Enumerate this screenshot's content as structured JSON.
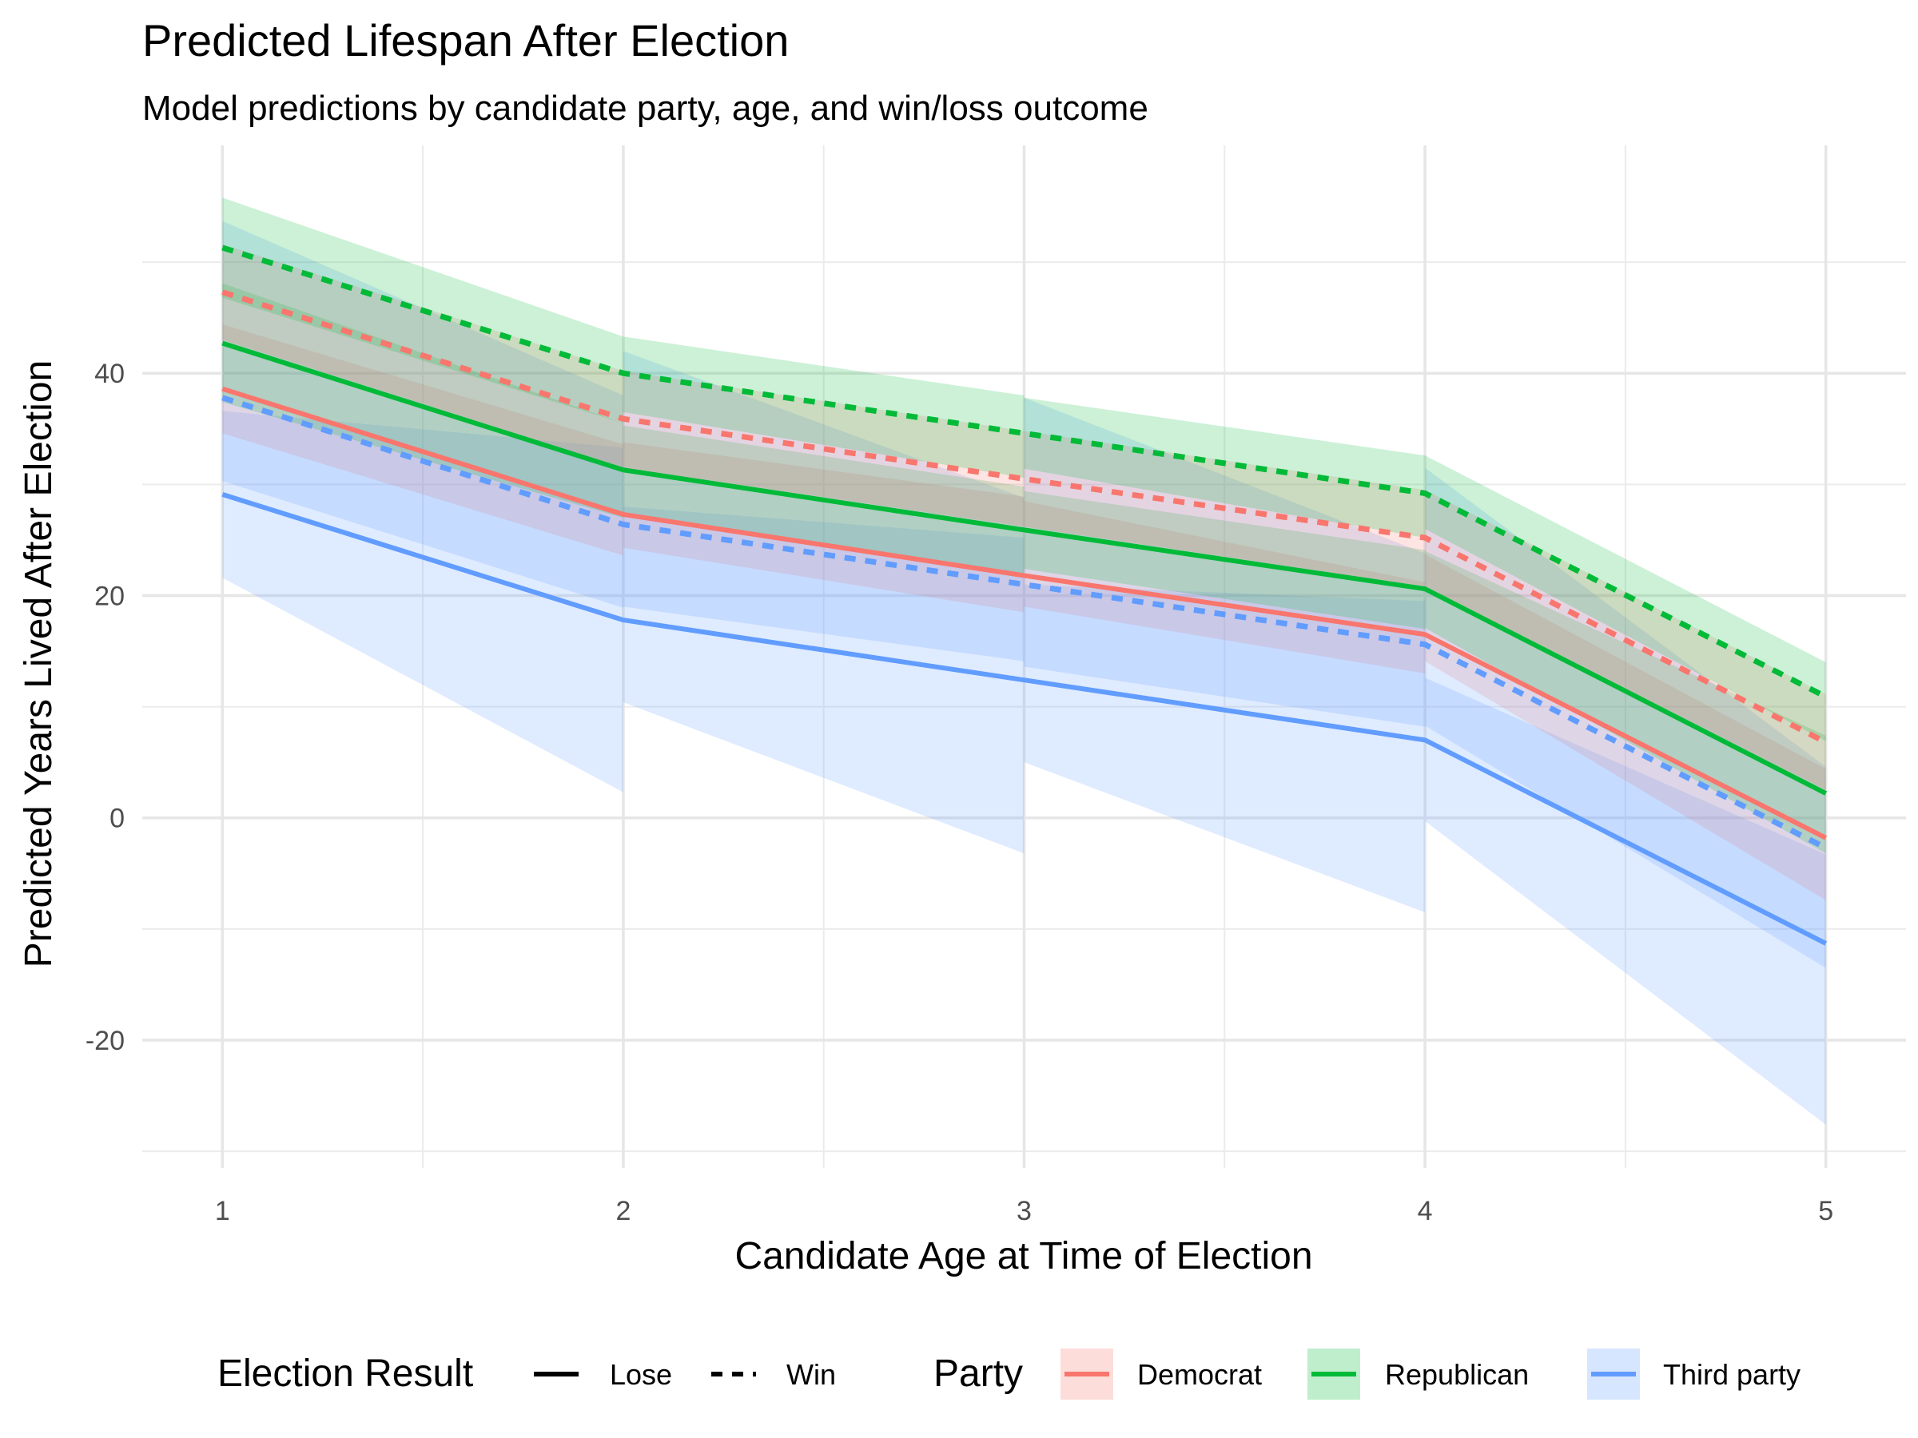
{
  "chart_data": {
    "type": "line",
    "title": "Predicted Lifespan After Election",
    "subtitle": "Model predictions by candidate party, age, and win/loss outcome",
    "xlabel": "Candidate Age at Time of Election",
    "ylabel": "Predicted Years Lived After Election",
    "xlim": [
      0.8,
      5.2
    ],
    "ylim": [
      -31.5,
      60.5
    ],
    "x_ticks": [
      1,
      2,
      3,
      4,
      5
    ],
    "y_ticks": [
      -20,
      0,
      20,
      40
    ],
    "y_minor_ticks": [
      -30,
      -10,
      10,
      30,
      50
    ],
    "x_minor_ticks": [
      1.5,
      2.5,
      3.5,
      4.5
    ],
    "grid": true,
    "legend_position": "bottom",
    "legend": {
      "result_title": "Election Result",
      "result_items": [
        {
          "label": "Lose",
          "linetype": "solid"
        },
        {
          "label": "Win",
          "linetype": "dashed"
        }
      ],
      "party_title": "Party",
      "party_items": [
        {
          "label": "Democrat",
          "color": "#F8766D"
        },
        {
          "label": "Republican",
          "color": "#00BA38"
        },
        {
          "label": "Third party",
          "color": "#619CFF"
        }
      ]
    },
    "series": [
      {
        "party": "Third party",
        "result": "Lose",
        "color": "#619CFF",
        "linetype": "solid",
        "x": [
          1,
          2,
          3,
          4,
          5
        ],
        "y": [
          29.1,
          17.8,
          12.4,
          7.0,
          -11.3
        ],
        "ribbon": [
          [
            1,
            2,
            21.6,
            2.3
          ],
          [
            2,
            3,
            10.4,
            -3.2
          ],
          [
            3,
            4,
            5.0,
            -8.5
          ],
          [
            4,
            5,
            -0.3,
            -27.6
          ]
        ],
        "ribbon_upper": [
          [
            1,
            2,
            36.6,
            33.3
          ],
          [
            2,
            3,
            28.0,
            25.2
          ],
          [
            3,
            4,
            21.0,
            19.5
          ],
          [
            4,
            5,
            12.6,
            -3.3
          ]
        ]
      },
      {
        "party": "Democrat",
        "result": "Lose",
        "color": "#F8766D",
        "linetype": "solid",
        "x": [
          1,
          2,
          3,
          4,
          5
        ],
        "y": [
          38.6,
          27.3,
          21.8,
          16.5,
          -1.8
        ],
        "ribbon": [
          [
            1,
            2,
            34.6,
            23.6
          ],
          [
            2,
            3,
            24.3,
            18.5
          ],
          [
            3,
            4,
            19.0,
            13.0
          ],
          [
            4,
            5,
            14.1,
            -7.4
          ]
        ],
        "ribbon_upper": [
          [
            1,
            2,
            44.4,
            33.6
          ],
          [
            2,
            3,
            33.8,
            28.9
          ],
          [
            3,
            4,
            28.5,
            21.2
          ],
          [
            4,
            5,
            23.7,
            4.4
          ]
        ]
      },
      {
        "party": "Third party",
        "result": "Win",
        "color": "#619CFF",
        "linetype": "dashed",
        "x": [
          1,
          2,
          3,
          4,
          5
        ],
        "y": [
          37.8,
          26.4,
          21.0,
          15.6,
          -2.7
        ],
        "ribbon": [
          [
            1,
            2,
            30.3,
            18.9
          ],
          [
            2,
            3,
            19.0,
            14.1
          ],
          [
            3,
            4,
            13.6,
            8.2
          ],
          [
            4,
            5,
            8.3,
            -13.5
          ]
        ],
        "ribbon_upper": [
          [
            1,
            2,
            53.7,
            38.0
          ],
          [
            2,
            3,
            42.0,
            28.8
          ],
          [
            3,
            4,
            37.8,
            23.8
          ],
          [
            4,
            5,
            31.5,
            4.6
          ]
        ]
      },
      {
        "party": "Republican",
        "result": "Lose",
        "color": "#00BA38",
        "linetype": "solid",
        "x": [
          1,
          2,
          3,
          4,
          5
        ],
        "y": [
          42.7,
          31.3,
          25.9,
          20.6,
          2.2
        ],
        "ribbon": [
          [
            1,
            2,
            37.4,
            27.0
          ],
          [
            2,
            3,
            27.3,
            22.0
          ],
          [
            3,
            4,
            22.4,
            17.0
          ],
          [
            4,
            5,
            17.1,
            -3.2
          ]
        ],
        "ribbon_upper": [
          [
            1,
            2,
            48.1,
            35.5
          ],
          [
            2,
            3,
            35.3,
            29.8
          ],
          [
            3,
            4,
            29.4,
            24.1
          ],
          [
            4,
            5,
            24.0,
            7.4
          ]
        ]
      },
      {
        "party": "Democrat",
        "result": "Win",
        "color": "#F8766D",
        "linetype": "dashed",
        "x": [
          1,
          2,
          3,
          4,
          5
        ],
        "y": [
          47.3,
          35.9,
          30.5,
          25.2,
          6.8
        ],
        "ribbon": [
          [
            1,
            2,
            43.0,
            31.5
          ],
          [
            2,
            3,
            31.5,
            26.2
          ],
          [
            3,
            4,
            26.2,
            20.8
          ],
          [
            4,
            5,
            20.8,
            2.5
          ]
        ],
        "ribbon_upper": [
          [
            1,
            2,
            51.6,
            40.2
          ],
          [
            2,
            3,
            40.2,
            34.8
          ],
          [
            3,
            4,
            34.8,
            29.5
          ],
          [
            4,
            5,
            29.5,
            11.1
          ]
        ]
      },
      {
        "party": "Republican",
        "result": "Win",
        "color": "#00BA38",
        "linetype": "dashed",
        "x": [
          1,
          2,
          3,
          4,
          5
        ],
        "y": [
          51.3,
          40.0,
          34.6,
          29.2,
          10.9
        ],
        "ribbon": [
          [
            1,
            2,
            46.8,
            35.5
          ],
          [
            2,
            3,
            36.5,
            30.6
          ],
          [
            3,
            4,
            31.4,
            25.2
          ],
          [
            4,
            5,
            26.0,
            6.9
          ]
        ],
        "ribbon_upper": [
          [
            1,
            2,
            55.8,
            43.3
          ],
          [
            2,
            3,
            43.3,
            38.0
          ],
          [
            3,
            4,
            37.8,
            32.6
          ],
          [
            4,
            5,
            32.6,
            14.0
          ]
        ]
      }
    ]
  }
}
